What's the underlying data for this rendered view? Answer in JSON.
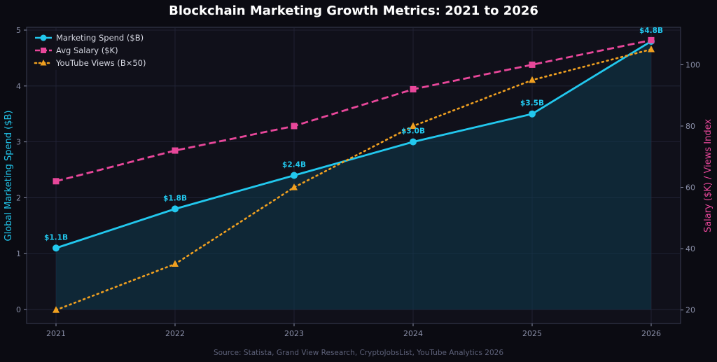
{
  "chart_data": {
    "type": "line",
    "title": "Blockchain Marketing Growth Metrics: 2021 to 2026",
    "source": "Source: Statista, Grand View Research, CryptoJobsList, YouTube Analytics 2026",
    "x": [
      2021,
      2022,
      2023,
      2024,
      2025,
      2026
    ],
    "x_tick_labels": [
      "2021",
      "2022",
      "2023",
      "2024",
      "2025",
      "2026"
    ],
    "y_left": {
      "label": "Global Marketing Spend ($B)",
      "lim": [
        -0.25,
        5.05
      ],
      "ticks": [
        0,
        1,
        2,
        3,
        4,
        5
      ],
      "tick_labels": [
        "0",
        "1",
        "2",
        "3",
        "4",
        "5"
      ],
      "color": "#22c8ee"
    },
    "y_right": {
      "label": "Salary ($K) / Views Index",
      "lim": [
        15.6,
        112.2
      ],
      "ticks": [
        20,
        40,
        60,
        80,
        100
      ],
      "tick_labels": [
        "20",
        "40",
        "60",
        "80",
        "100"
      ],
      "color": "#e8479a"
    },
    "series": [
      {
        "name": "Marketing Spend ($B)",
        "axis": "left",
        "style": "solid",
        "marker": "circle",
        "color": "#22c8ee",
        "fill_area": true,
        "values": [
          1.1,
          1.8,
          2.4,
          3.0,
          3.5,
          4.8
        ],
        "data_labels": [
          "$1.1B",
          "$1.8B",
          "$2.4B",
          "$3.0B",
          "$3.5B",
          "$4.8B"
        ]
      },
      {
        "name": "Avg Salary ($K)",
        "axis": "right",
        "style": "dashed",
        "marker": "square",
        "color": "#e8479a",
        "values": [
          62,
          72,
          80,
          92,
          100,
          108
        ]
      },
      {
        "name": "YouTube Views (B×50)",
        "axis": "right",
        "style": "dotted",
        "marker": "triangle",
        "color": "#f0a020",
        "values": [
          20,
          35,
          60,
          80,
          95,
          105
        ]
      }
    ],
    "grid": true,
    "legend_position": "top-left"
  }
}
